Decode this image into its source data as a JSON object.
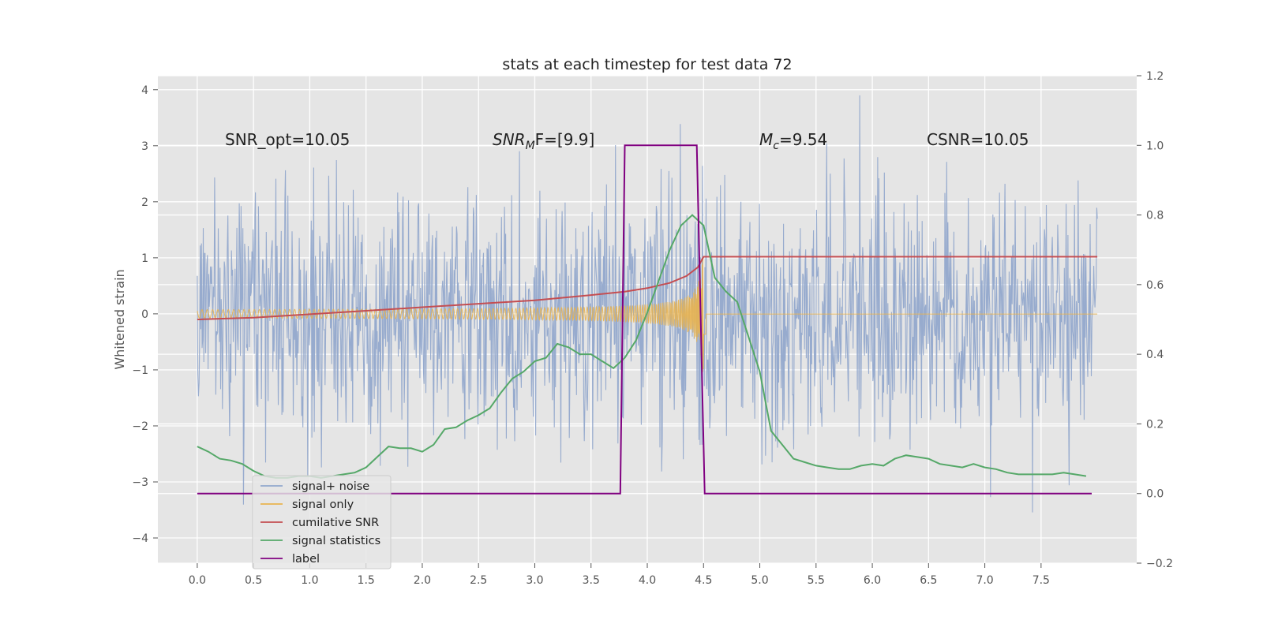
{
  "chart_data": {
    "type": "line",
    "title": "stats at each timestep for test data 72",
    "ylabel": "Whitened strain",
    "xlabel": "",
    "xlim": [
      -0.35,
      8.35
    ],
    "ylim": [
      -4.45,
      4.25
    ],
    "ylim_right": [
      -0.2,
      1.2
    ],
    "x_ticks": [
      "0.0",
      "0.5",
      "1.0",
      "1.5",
      "2.0",
      "2.5",
      "3.0",
      "3.5",
      "4.0",
      "4.5",
      "5.0",
      "5.5",
      "6.0",
      "6.5",
      "7.0",
      "7.5"
    ],
    "y_ticks": [
      "4",
      "3",
      "2",
      "1",
      "0",
      "−1",
      "−2",
      "−3",
      "−4"
    ],
    "y_ticks_right": [
      "1.2",
      "1.0",
      "0.8",
      "0.6",
      "0.4",
      "0.2",
      "0.0",
      "−0.2"
    ],
    "grid": true,
    "legend_position": "lower-left",
    "annotations": {
      "snr_opt": "SNR_opt=10.05",
      "snr_mf_main": "SNR",
      "snr_mf_sub": "M",
      "snr_mf_rest": "F=[9.9]",
      "mc_main": "M",
      "mc_sub": "c",
      "mc_rest": "=9.54",
      "csnr": "CSNR=10.05"
    },
    "series": [
      {
        "name": "signal+ noise",
        "color": "#92a8cc",
        "axis": "left",
        "description_values": {
          "x_start": 0.0,
          "x_end": 8.0,
          "std": 1.0
        }
      },
      {
        "name": "signal only",
        "color": "#e8b34f",
        "axis": "left",
        "description_values": {
          "x_start": 0.0,
          "x_end": 8.0,
          "merger_x": 4.5,
          "peak_amplitude": 1.05
        }
      },
      {
        "name": "cumilative SNR",
        "color": "#c44e52",
        "axis": "right",
        "x": [
          0.0,
          0.5,
          1.0,
          1.5,
          2.0,
          2.5,
          3.0,
          3.5,
          3.8,
          4.0,
          4.2,
          4.35,
          4.45,
          4.5,
          5.0,
          6.0,
          7.0,
          8.0
        ],
        "y": [
          0.5,
          0.505,
          0.515,
          0.525,
          0.535,
          0.545,
          0.555,
          0.57,
          0.58,
          0.59,
          0.605,
          0.625,
          0.65,
          0.68,
          0.68,
          0.68,
          0.68,
          0.68
        ]
      },
      {
        "name": "signal statistics",
        "color": "#55a868",
        "axis": "right",
        "x": [
          0.0,
          0.1,
          0.2,
          0.3,
          0.4,
          0.5,
          0.6,
          0.7,
          0.8,
          0.9,
          1.0,
          1.1,
          1.2,
          1.3,
          1.4,
          1.5,
          1.6,
          1.7,
          1.8,
          1.9,
          2.0,
          2.1,
          2.2,
          2.3,
          2.4,
          2.5,
          2.6,
          2.7,
          2.8,
          2.9,
          3.0,
          3.1,
          3.2,
          3.3,
          3.4,
          3.5,
          3.6,
          3.7,
          3.8,
          3.9,
          4.0,
          4.1,
          4.2,
          4.3,
          4.4,
          4.5,
          4.6,
          4.7,
          4.8,
          4.9,
          5.0,
          5.1,
          5.2,
          5.3,
          5.4,
          5.5,
          5.6,
          5.7,
          5.8,
          5.9,
          6.0,
          6.1,
          6.2,
          6.3,
          6.4,
          6.5,
          6.6,
          6.7,
          6.8,
          6.9,
          7.0,
          7.1,
          7.2,
          7.3,
          7.4,
          7.5,
          7.6,
          7.7,
          7.8,
          7.9
        ],
        "y": [
          0.135,
          0.12,
          0.1,
          0.095,
          0.085,
          0.065,
          0.05,
          0.045,
          0.045,
          0.05,
          0.05,
          0.045,
          0.05,
          0.055,
          0.06,
          0.075,
          0.105,
          0.135,
          0.13,
          0.13,
          0.12,
          0.14,
          0.185,
          0.19,
          0.21,
          0.225,
          0.245,
          0.29,
          0.33,
          0.35,
          0.38,
          0.39,
          0.43,
          0.42,
          0.4,
          0.4,
          0.38,
          0.36,
          0.39,
          0.44,
          0.52,
          0.61,
          0.7,
          0.77,
          0.8,
          0.77,
          0.62,
          0.58,
          0.55,
          0.45,
          0.35,
          0.18,
          0.14,
          0.1,
          0.09,
          0.08,
          0.075,
          0.07,
          0.07,
          0.08,
          0.085,
          0.08,
          0.1,
          0.11,
          0.105,
          0.1,
          0.085,
          0.08,
          0.075,
          0.085,
          0.075,
          0.07,
          0.06,
          0.055,
          0.055,
          0.055,
          0.055,
          0.06,
          0.055,
          0.05
        ]
      },
      {
        "name": "label",
        "color": "#800080",
        "axis": "right",
        "x": [
          0.0,
          3.76,
          3.8,
          4.44,
          4.51,
          7.95
        ],
        "y": [
          0.0,
          0.0,
          1.0,
          1.0,
          0.0,
          0.0
        ]
      }
    ]
  }
}
